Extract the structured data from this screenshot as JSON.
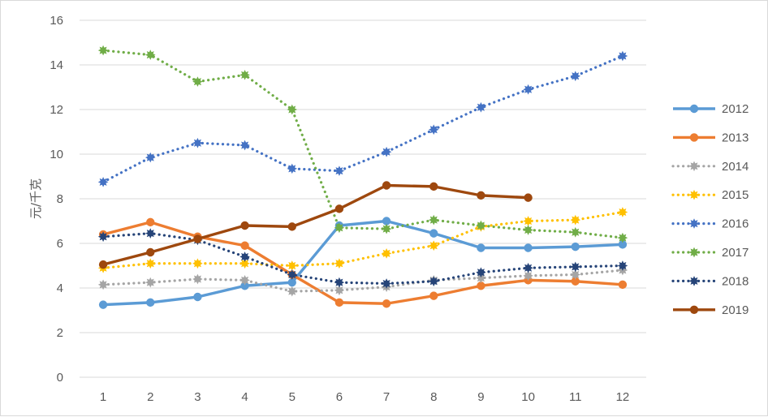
{
  "chart_data": {
    "type": "line",
    "ylabel": "元/千克",
    "xlabel": "",
    "ylim": [
      0,
      16
    ],
    "yticks": [
      0,
      2,
      4,
      6,
      8,
      10,
      12,
      14,
      16
    ],
    "categories": [
      "1",
      "2",
      "3",
      "4",
      "5",
      "6",
      "7",
      "8",
      "9",
      "10",
      "11",
      "12"
    ],
    "grid": "horizontal",
    "legend_position": "right",
    "series": [
      {
        "name": "2012",
        "color": "#5b9bd5",
        "style": "solid",
        "values": [
          3.25,
          3.35,
          3.6,
          4.1,
          4.25,
          6.8,
          7.0,
          6.45,
          5.8,
          5.8,
          5.85,
          5.95
        ]
      },
      {
        "name": "2013",
        "color": "#ed7d31",
        "style": "solid",
        "values": [
          6.4,
          6.95,
          6.3,
          5.9,
          4.6,
          3.35,
          3.3,
          3.65,
          4.1,
          4.35,
          4.3,
          4.15
        ]
      },
      {
        "name": "2014",
        "color": "#a5a5a5",
        "style": "dotted",
        "values": [
          4.15,
          4.25,
          4.4,
          4.35,
          3.85,
          3.9,
          4.05,
          4.35,
          4.45,
          4.55,
          4.6,
          4.8
        ]
      },
      {
        "name": "2015",
        "color": "#ffc000",
        "style": "dotted",
        "values": [
          4.9,
          5.1,
          5.1,
          5.1,
          5.0,
          5.1,
          5.55,
          5.9,
          6.75,
          7.0,
          7.05,
          7.4
        ]
      },
      {
        "name": "2016",
        "color": "#4472c4",
        "style": "dotted",
        "values": [
          8.75,
          9.85,
          10.5,
          10.4,
          9.35,
          9.25,
          10.1,
          11.1,
          12.1,
          12.9,
          13.5,
          14.4
        ]
      },
      {
        "name": "2017",
        "color": "#70ad47",
        "style": "dotted",
        "values": [
          14.65,
          14.45,
          13.25,
          13.55,
          12.0,
          6.7,
          6.65,
          7.05,
          6.8,
          6.6,
          6.5,
          6.25
        ]
      },
      {
        "name": "2018",
        "color": "#264478",
        "style": "dotted",
        "values": [
          6.3,
          6.45,
          6.15,
          5.4,
          4.6,
          4.25,
          4.2,
          4.3,
          4.7,
          4.9,
          4.95,
          5.0
        ]
      },
      {
        "name": "2019",
        "color": "#9e480e",
        "style": "solid",
        "values": [
          5.05,
          5.6,
          6.2,
          6.8,
          6.75,
          7.55,
          8.6,
          8.55,
          8.15,
          8.05,
          null,
          null
        ]
      }
    ]
  }
}
